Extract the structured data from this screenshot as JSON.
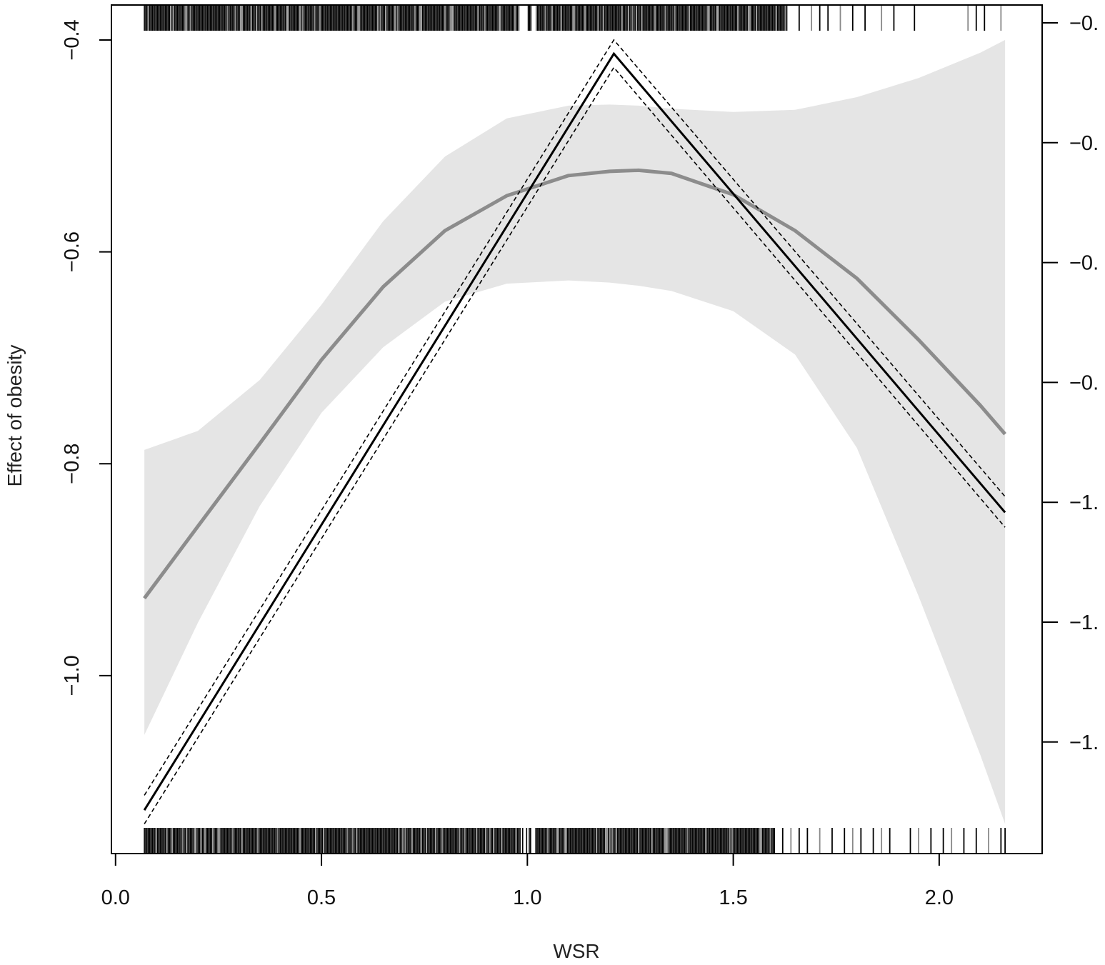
{
  "chart_data": {
    "type": "line",
    "title": "",
    "xlabel": "WSR",
    "ylabel": "Effect of obesity",
    "xlim": [
      -0.01,
      2.25
    ],
    "ylim": [
      -1.168,
      -0.367
    ],
    "x_ticks": [
      0.0,
      0.5,
      1.0,
      1.5,
      2.0
    ],
    "x_tick_labels": [
      "0.0",
      "0.5",
      "1.0",
      "1.5",
      "2.0"
    ],
    "y_ticks": [
      -1.0,
      -0.8,
      -0.6,
      -0.4
    ],
    "y_tick_labels": [
      "−1.0",
      "−0.8",
      "−0.6",
      "−0.4"
    ],
    "right_axis_tick_labels": [
      "−0.",
      "−0.",
      "−0.",
      "−0.",
      "−1.",
      "−1.",
      "−1."
    ],
    "grid": false,
    "legend": "none",
    "colors": {
      "smooth": "#8c8c8c",
      "band": "#e5e5e5",
      "piecewise": "#000000",
      "rug_dark": "#000000",
      "rug_light": "#888888"
    },
    "series": [
      {
        "style": "smooth-gray",
        "x": [
          0.07,
          0.2,
          0.35,
          0.5,
          0.65,
          0.8,
          0.95,
          1.1,
          1.2,
          1.27,
          1.35,
          1.5,
          1.65,
          1.8,
          1.95,
          2.1,
          2.16
        ],
        "y": [
          -0.927,
          -0.859,
          -0.781,
          -0.702,
          -0.633,
          -0.58,
          -0.547,
          -0.528,
          -0.524,
          -0.523,
          -0.526,
          -0.546,
          -0.58,
          -0.625,
          -0.683,
          -0.745,
          -0.772
        ]
      },
      {
        "style": "piecewise-black",
        "x": [
          0.07,
          1.21,
          2.16
        ],
        "y": [
          -1.127,
          -0.413,
          -0.846
        ]
      },
      {
        "style": "piecewise-dashed-upper",
        "x": [
          0.07,
          1.21,
          2.16
        ],
        "y": [
          -1.113,
          -0.4,
          -0.831
        ]
      },
      {
        "style": "piecewise-dashed-lower",
        "x": [
          0.07,
          1.21,
          2.16
        ],
        "y": [
          -1.14,
          -0.426,
          -0.86
        ]
      }
    ],
    "band": {
      "x": [
        0.07,
        0.2,
        0.35,
        0.5,
        0.65,
        0.8,
        0.95,
        1.1,
        1.2,
        1.27,
        1.35,
        1.5,
        1.65,
        1.8,
        1.95,
        2.1,
        2.16
      ],
      "upper": [
        -0.787,
        -0.769,
        -0.721,
        -0.65,
        -0.571,
        -0.51,
        -0.474,
        -0.462,
        -0.461,
        -0.462,
        -0.465,
        -0.468,
        -0.466,
        -0.454,
        -0.436,
        -0.412,
        -0.4
      ],
      "lower": [
        -1.056,
        -0.95,
        -0.84,
        -0.752,
        -0.69,
        -0.647,
        -0.63,
        -0.627,
        -0.629,
        -0.632,
        -0.637,
        -0.656,
        -0.697,
        -0.785,
        -0.925,
        -1.075,
        -1.14
      ]
    },
    "rug_top": {
      "dense_range": [
        0.07,
        1.63
      ],
      "sparse": [
        1.66,
        1.69,
        1.71,
        1.73,
        1.76,
        1.79,
        1.82,
        1.86,
        1.89,
        1.94,
        2.07,
        2.09,
        2.11,
        2.15
      ]
    },
    "rug_bottom": {
      "dense_range": [
        0.07,
        1.6
      ],
      "sparse": [
        1.62,
        1.64,
        1.66,
        1.68,
        1.71,
        1.74,
        1.77,
        1.79,
        1.81,
        1.84,
        1.86,
        1.88,
        1.93,
        1.95,
        1.98,
        2.01,
        2.03,
        2.06,
        2.09,
        2.12,
        2.15,
        2.16
      ]
    }
  }
}
